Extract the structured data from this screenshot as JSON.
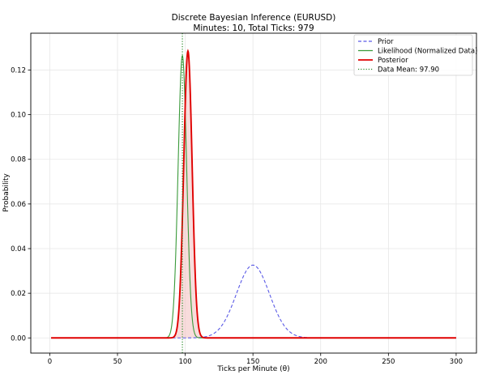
{
  "chart_data": {
    "type": "line",
    "title": "Discrete Bayesian Inference (EURUSD)",
    "subtitle": "Minutes: 10, Total Ticks: 979",
    "xlabel": "Ticks per Minute (θ)",
    "ylabel": "Probability",
    "xlim": [
      -14,
      315
    ],
    "ylim": [
      -0.0068,
      0.1365
    ],
    "x_ticks": [
      "0",
      "50",
      "100",
      "150",
      "200",
      "250",
      "300"
    ],
    "y_ticks": [
      "0.00",
      "0.02",
      "0.04",
      "0.06",
      "0.08",
      "0.10",
      "0.12"
    ],
    "x_tick_values": [
      0,
      50,
      100,
      150,
      200,
      250,
      300
    ],
    "y_tick_values": [
      0,
      0.02,
      0.04,
      0.06,
      0.08,
      0.1,
      0.12
    ],
    "grid": true,
    "legend_position": "top-right",
    "x_range": [
      1,
      300
    ],
    "series": [
      {
        "name": "Prior",
        "kind": "gaussian",
        "mean": 150,
        "sd": 12.2,
        "peak": 0.0326,
        "color": "#5a5ae6",
        "style": "dashed"
      },
      {
        "name": "Likelihood (Normalized Data)",
        "kind": "gaussian",
        "mean": 97.9,
        "sd": 3.15,
        "peak": 0.1265,
        "color": "#3a9a3a",
        "style": "solid"
      },
      {
        "name": "Posterior",
        "kind": "gaussian",
        "mean": 102,
        "sd": 3.1,
        "peak": 0.1285,
        "color": "#e00000",
        "style": "solid",
        "fill": "#f4c4c4"
      },
      {
        "name": "Data Mean: 97.90",
        "kind": "vline",
        "x": 97.9,
        "color": "#2a8a2a",
        "style": "dotted"
      }
    ]
  }
}
